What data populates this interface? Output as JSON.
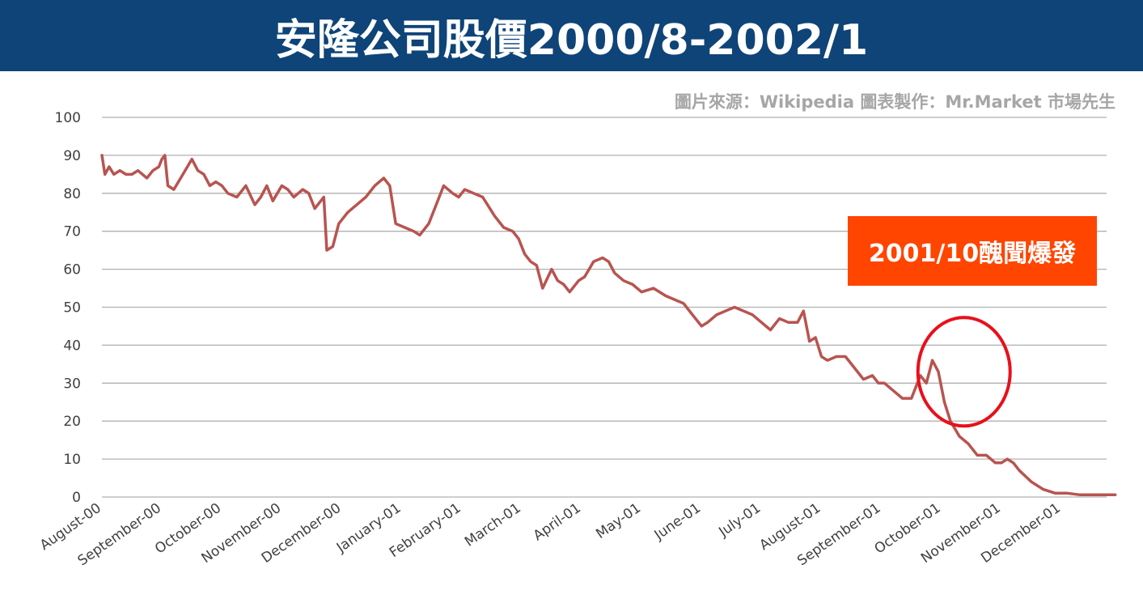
{
  "header": {
    "title": "安隆公司股價2000/8-2002/1"
  },
  "source_note": "圖片來源：Wikipedia 圖表製作：Mr.Market 市場先生",
  "annotation": {
    "label": "2001/10醜聞爆發"
  },
  "colors": {
    "title_bar": "#0e4478",
    "line": "#b85450",
    "callout_bg": "#ff4500",
    "highlight_ring": "#e8101a",
    "grid": "#b0b0b0"
  },
  "chart_data": {
    "type": "line",
    "title": "",
    "xlabel": "",
    "ylabel": "",
    "ylim": [
      0,
      100
    ],
    "yticks": [
      0,
      10,
      20,
      30,
      40,
      50,
      60,
      70,
      80,
      90,
      100
    ],
    "x_ticks": [
      "August-00",
      "September-00",
      "October-00",
      "November-00",
      "December-00",
      "January-01",
      "February-01",
      "March-01",
      "April-01",
      "May-01",
      "June-01",
      "July-01",
      "August-01",
      "September-01",
      "October-01",
      "November-01",
      "December-01"
    ],
    "grid": "horizontal",
    "highlight_month": "October-01",
    "series": [
      {
        "x_month_index": [
          0,
          0.05,
          0.12,
          0.2,
          0.3,
          0.4,
          0.5,
          0.6,
          0.75,
          0.85,
          0.95,
          1.0,
          1.05,
          1.1,
          1.2,
          1.35,
          1.5,
          1.6,
          1.7,
          1.8,
          1.9,
          2.0,
          2.1,
          2.25,
          2.4,
          2.55,
          2.65,
          2.75,
          2.85,
          3.0,
          3.1,
          3.2,
          3.35,
          3.45,
          3.55,
          3.65,
          3.7,
          3.75,
          3.85,
          3.95,
          4.1,
          4.25,
          4.4,
          4.55,
          4.7,
          4.8,
          4.9,
          5.05,
          5.2,
          5.3,
          5.45,
          5.55,
          5.7,
          5.85,
          5.95,
          6.05,
          6.2,
          6.35,
          6.55,
          6.7,
          6.85,
          6.95,
          7.05,
          7.15,
          7.25,
          7.35,
          7.5,
          7.6,
          7.7,
          7.8,
          7.95,
          8.05,
          8.2,
          8.35,
          8.45,
          8.55,
          8.7,
          8.85,
          9.0,
          9.2,
          9.4,
          9.55,
          9.7,
          9.85,
          10.0,
          10.1,
          10.25,
          10.4,
          10.55,
          10.7,
          10.85,
          11.0,
          11.15,
          11.3,
          11.45,
          11.6,
          11.7,
          11.8,
          11.9,
          12.0,
          12.1,
          12.25,
          12.4,
          12.55,
          12.7,
          12.85,
          12.95,
          13.05,
          13.2,
          13.35,
          13.5,
          13.65,
          13.75,
          13.85,
          13.95,
          14.05,
          14.15,
          14.3,
          14.45,
          14.6,
          14.75,
          14.9,
          15.0,
          15.1,
          15.2,
          15.3,
          15.5,
          15.7,
          15.9,
          16.1,
          16.3,
          16.5,
          16.7,
          16.9
        ],
        "values": [
          90,
          85,
          87,
          85,
          86,
          85,
          85,
          86,
          84,
          86,
          87,
          89,
          90,
          82,
          81,
          85,
          89,
          86,
          85,
          82,
          83,
          82,
          80,
          79,
          82,
          77,
          79,
          82,
          78,
          82,
          81,
          79,
          81,
          80,
          76,
          78,
          79,
          65,
          66,
          72,
          75,
          77,
          79,
          82,
          84,
          82,
          72,
          71,
          70,
          69,
          72,
          76,
          82,
          80,
          79,
          81,
          80,
          79,
          74,
          71,
          70,
          68,
          64,
          62,
          61,
          55,
          60,
          57,
          56,
          54,
          57,
          58,
          62,
          63,
          62,
          59,
          57,
          56,
          54,
          55,
          53,
          52,
          51,
          48,
          45,
          46,
          48,
          49,
          50,
          49,
          48,
          46,
          44,
          47,
          46,
          46,
          49,
          41,
          42,
          37,
          36,
          37,
          37,
          34,
          31,
          32,
          30,
          30,
          28,
          26,
          26,
          32,
          30,
          36,
          33,
          25,
          20,
          16,
          14,
          11,
          11,
          9,
          9,
          10,
          9,
          7,
          4,
          2,
          1,
          1,
          0.6,
          0.6,
          0.6,
          0.6
        ]
      }
    ]
  }
}
